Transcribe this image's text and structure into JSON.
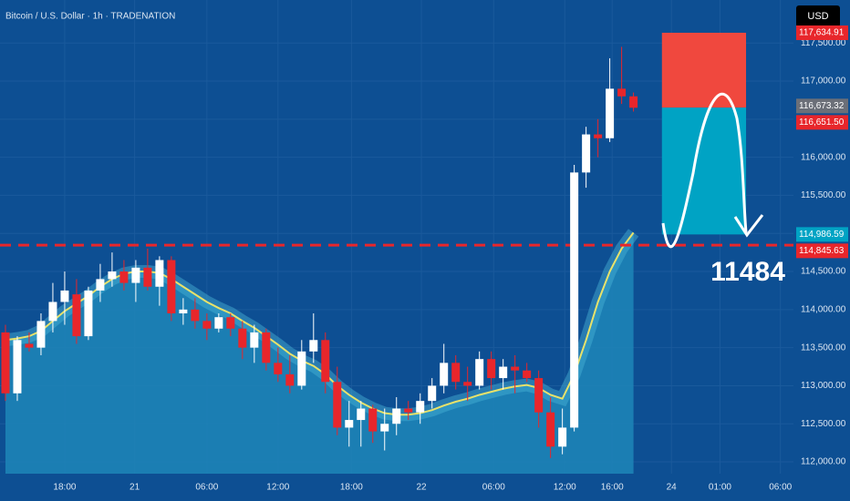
{
  "chart_data": {
    "type": "candlestick",
    "title": "Bitcoin / U.S. Dollar · 1h · TRADENATION",
    "currency": "USD",
    "annotation": "11484",
    "x": [
      0,
      1,
      2,
      3,
      4,
      5,
      6,
      7,
      8,
      9,
      10,
      11,
      12,
      13,
      14,
      15,
      16,
      17,
      18,
      19,
      20,
      21,
      22,
      23,
      24,
      25,
      26,
      27,
      28,
      29,
      30,
      31,
      32,
      33,
      34,
      35,
      36,
      37,
      38,
      39,
      40,
      41,
      42,
      43,
      44,
      45,
      46,
      47,
      48,
      49,
      50,
      51,
      52,
      53
    ],
    "open": [
      113700,
      112900,
      113550,
      113500,
      113850,
      114100,
      114200,
      113650,
      114250,
      114400,
      114500,
      114350,
      114550,
      114300,
      114650,
      113950,
      114000,
      113850,
      113750,
      113900,
      113750,
      113500,
      113700,
      113300,
      113150,
      113000,
      113450,
      113600,
      113050,
      112450,
      112550,
      112700,
      112400,
      112500,
      112700,
      112650,
      112800,
      113000,
      113300,
      113050,
      113000,
      113350,
      113100,
      113250,
      113200,
      113100,
      112650,
      112200,
      112450,
      115800,
      116300,
      116250,
      116900,
      116800
    ],
    "high": [
      113800,
      113650,
      113700,
      113950,
      114350,
      114500,
      114400,
      114300,
      114600,
      114750,
      114650,
      114650,
      114800,
      114700,
      114700,
      114150,
      114150,
      113950,
      113950,
      113950,
      113850,
      113800,
      113750,
      113500,
      113400,
      113600,
      113950,
      113700,
      113250,
      112800,
      112800,
      112750,
      112700,
      112850,
      112800,
      112900,
      113100,
      113550,
      113400,
      113250,
      113450,
      113450,
      113350,
      113400,
      113300,
      113200,
      112850,
      112700,
      115900,
      116400,
      116500,
      117300,
      117450,
      116850
    ],
    "low": [
      112800,
      112800,
      113450,
      113400,
      113700,
      113800,
      113550,
      113600,
      114100,
      114300,
      114250,
      114100,
      114250,
      114050,
      113850,
      113800,
      113750,
      113600,
      113700,
      113650,
      113350,
      113300,
      113200,
      113050,
      112900,
      112950,
      113300,
      112900,
      112350,
      112200,
      112200,
      112250,
      112150,
      112350,
      112550,
      112500,
      112700,
      112900,
      112950,
      112800,
      112950,
      112950,
      112950,
      112900,
      113050,
      112450,
      112050,
      112100,
      112400,
      115600,
      116000,
      116200,
      116700,
      116600
    ],
    "close": [
      112900,
      113600,
      113500,
      113850,
      114100,
      114250,
      113650,
      114250,
      114400,
      114500,
      114350,
      114550,
      114300,
      114650,
      113950,
      114000,
      113850,
      113750,
      113900,
      113750,
      113500,
      113700,
      113300,
      113150,
      113000,
      113450,
      113600,
      113050,
      112450,
      112550,
      112700,
      112400,
      112500,
      112700,
      112650,
      112800,
      113000,
      113300,
      113050,
      113000,
      113350,
      113100,
      113250,
      113200,
      113100,
      112650,
      112200,
      112450,
      115800,
      116300,
      116250,
      116900,
      116800,
      116650
    ],
    "ema": [
      113600,
      113620,
      113650,
      113720,
      113850,
      113980,
      114080,
      114180,
      114300,
      114400,
      114470,
      114500,
      114500,
      114480,
      114400,
      114300,
      114200,
      114100,
      114020,
      113950,
      113850,
      113760,
      113650,
      113540,
      113420,
      113330,
      113260,
      113150,
      113000,
      112880,
      112780,
      112700,
      112640,
      112620,
      112620,
      112640,
      112680,
      112740,
      112790,
      112830,
      112880,
      112920,
      112960,
      112990,
      113010,
      112970,
      112880,
      112830,
      113150,
      113600,
      114100,
      114500,
      114800,
      115010
    ],
    "colors": {
      "up": "#ffffff",
      "down": "#e8262b",
      "ema": "#e8e26a",
      "area": "#1f86b8"
    },
    "ylim": [
      111845,
      118065
    ],
    "yticks": [
      {
        "value": 112000,
        "label": "112,000.00"
      },
      {
        "value": 112500,
        "label": "112,500.00"
      },
      {
        "value": 113000,
        "label": "113,000.00"
      },
      {
        "value": 113500,
        "label": "113,500.00"
      },
      {
        "value": 114000,
        "label": "114,000.00"
      },
      {
        "value": 114500,
        "label": "114,500.00"
      },
      {
        "value": 115000,
        "label": "115,000.00"
      },
      {
        "value": 115500,
        "label": "115,500.00"
      },
      {
        "value": 116000,
        "label": "116,000.00"
      },
      {
        "value": 116500,
        "label": "116,500.00"
      },
      {
        "value": 117000,
        "label": "117,000.00"
      },
      {
        "value": 117500,
        "label": "117,500.00"
      }
    ],
    "xlim": [
      -0.46,
      66.5
    ],
    "xticks": [
      {
        "value": 5,
        "label": "18:00"
      },
      {
        "value": 10.9,
        "label": "21"
      },
      {
        "value": 17,
        "label": "06:00"
      },
      {
        "value": 23,
        "label": "12:00"
      },
      {
        "value": 29.2,
        "label": "18:00"
      },
      {
        "value": 35.1,
        "label": "22"
      },
      {
        "value": 41.2,
        "label": "06:00"
      },
      {
        "value": 47.2,
        "label": "12:00"
      },
      {
        "value": 51.2,
        "label": "16:00"
      },
      {
        "value": 56.2,
        "label": "24"
      },
      {
        "value": 60.3,
        "label": "01:00"
      },
      {
        "value": 65.4,
        "label": "06:00"
      }
    ],
    "position": {
      "stop": 117634.91,
      "entry": 116651.5,
      "target": 114986.59,
      "start": 55.4,
      "end": 62.5
    },
    "level": 114845.63,
    "price_labels": [
      {
        "value": 117634.91,
        "label": "117,634.91",
        "color": "#e8262b"
      },
      {
        "value": 116673.32,
        "label": "116,673.32",
        "color": "#6b6f78"
      },
      {
        "value": 116651.5,
        "label": "116,651.50",
        "color": "#e8262b"
      },
      {
        "value": 114986.59,
        "label": "114,986.59",
        "color": "#00a3c4"
      },
      {
        "value": 114845.63,
        "label": "114,845.63",
        "color": "#e8262b"
      }
    ]
  }
}
